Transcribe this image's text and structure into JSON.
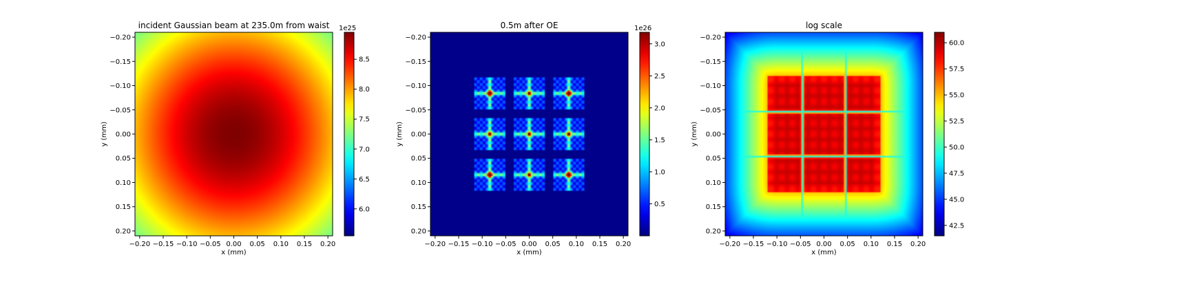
{
  "chart_data": [
    {
      "type": "heatmap",
      "title": "incident Gaussian beam at 235.0m from waist",
      "xlabel": "x (mm)",
      "ylabel": "y (mm)",
      "xlim": [
        -0.21,
        0.21
      ],
      "ylim": [
        0.21,
        -0.21
      ],
      "xticks": [
        "−0.20",
        "−0.15",
        "−0.10",
        "−0.05",
        "0.00",
        "0.05",
        "0.10",
        "0.15",
        "0.20"
      ],
      "yticks": [
        "−0.20",
        "−0.15",
        "−0.10",
        "−0.05",
        "0.00",
        "0.05",
        "0.10",
        "0.15",
        "0.20"
      ],
      "colormap": "jet",
      "pattern": "gaussian",
      "beam_radius_mm": 0.33,
      "colorbar": {
        "min": 5.55,
        "max": 8.95,
        "exponent": "1e25",
        "ticks": [
          6.0,
          6.5,
          7.0,
          7.5,
          8.0,
          8.5
        ],
        "tick_labels": [
          "6.0",
          "6.5",
          "7.0",
          "7.5",
          "8.0",
          "8.5"
        ]
      }
    },
    {
      "type": "heatmap",
      "title": "0.5m after OE",
      "xlabel": "x (mm)",
      "ylabel": "y (mm)",
      "xlim": [
        -0.21,
        0.21
      ],
      "ylim": [
        0.21,
        -0.21
      ],
      "xticks": [
        "−0.20",
        "−0.15",
        "−0.10",
        "−0.05",
        "0.00",
        "0.05",
        "0.10",
        "0.15",
        "0.20"
      ],
      "yticks": [
        "−0.20",
        "−0.15",
        "−0.10",
        "−0.05",
        "0.00",
        "0.05",
        "0.10",
        "0.15",
        "0.20"
      ],
      "colormap": "jet",
      "pattern": "3x3 aperture array",
      "aperture_centers_mm": [
        -0.084,
        0.0,
        0.084
      ],
      "aperture_half_width_mm": 0.034,
      "colorbar": {
        "min": 0.0,
        "max": 3.18,
        "exponent": "1e26",
        "ticks": [
          0.5,
          1.0,
          1.5,
          2.0,
          2.5,
          3.0
        ],
        "tick_labels": [
          "0.5",
          "1.0",
          "1.5",
          "2.0",
          "2.5",
          "3.0"
        ]
      }
    },
    {
      "type": "heatmap",
      "title": "log scale",
      "xlabel": "x (mm)",
      "ylabel": "y (mm)",
      "xlim": [
        -0.21,
        0.21
      ],
      "ylim": [
        0.21,
        -0.21
      ],
      "xticks": [
        "−0.20",
        "−0.15",
        "−0.10",
        "−0.05",
        "0.00",
        "0.05",
        "0.10",
        "0.15",
        "0.20"
      ],
      "yticks": [
        "−0.20",
        "−0.15",
        "−0.10",
        "−0.05",
        "0.00",
        "0.05",
        "0.10",
        "0.15",
        "0.20"
      ],
      "colormap": "jet",
      "pattern": "log of 3x3 aperture array",
      "aperture_centers_mm": [
        -0.084,
        0.0,
        0.084
      ],
      "aperture_half_width_mm": 0.034,
      "colorbar": {
        "min": 41.5,
        "max": 61.0,
        "exponent": "",
        "ticks": [
          42.5,
          45.0,
          47.5,
          50.0,
          52.5,
          55.0,
          57.5,
          60.0
        ],
        "tick_labels": [
          "42.5",
          "45.0",
          "47.5",
          "50.0",
          "52.5",
          "55.0",
          "57.5",
          "60.0"
        ]
      }
    }
  ]
}
